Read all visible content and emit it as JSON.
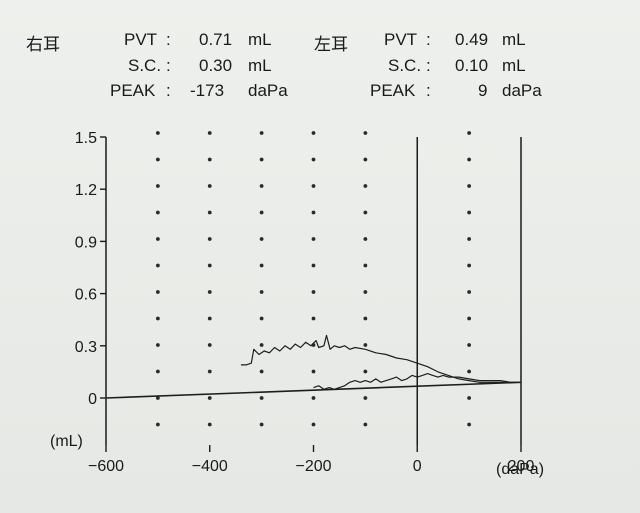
{
  "header": {
    "right_ear": {
      "label": "右耳",
      "rows": [
        {
          "name": "PVT",
          "colon": ":",
          "value": "0.71",
          "unit": "mL"
        },
        {
          "name": "S.C.",
          "colon": ":",
          "value": "0.30",
          "unit": "mL"
        },
        {
          "name": "PEAK",
          "colon": ":",
          "value": "-173",
          "unit": "daPa"
        }
      ]
    },
    "left_ear": {
      "label": "左耳",
      "rows": [
        {
          "name": "PVT",
          "colon": ":",
          "value": "0.49",
          "unit": "mL"
        },
        {
          "name": "S.C.",
          "colon": ":",
          "value": "0.10",
          "unit": "mL"
        },
        {
          "name": "PEAK",
          "colon": ":",
          "value": "9",
          "unit": "daPa"
        }
      ]
    }
  },
  "chart_data": {
    "type": "line",
    "title": "",
    "xlabel": "(daPa)",
    "ylabel": "(mL)",
    "xlim": [
      -600,
      200
    ],
    "ylim": [
      0,
      1.5
    ],
    "x_ticks": [
      -600,
      -400,
      -200,
      0,
      200
    ],
    "x_tick_labels": [
      "−600",
      "−400",
      "−200",
      "0",
      "200"
    ],
    "y_ticks": [
      0,
      0.3,
      0.6,
      0.9,
      1.2,
      1.5
    ],
    "y_tick_labels": [
      "0",
      "0.3",
      "0.6",
      "0.9",
      "1.2",
      "1.5"
    ],
    "dot_grid": true,
    "series": [
      {
        "values": [
          [
            -340,
            0.19
          ],
          [
            -330,
            0.19
          ],
          [
            -320,
            0.2
          ],
          [
            -315,
            0.28
          ],
          [
            -305,
            0.25
          ],
          [
            -295,
            0.27
          ],
          [
            -285,
            0.26
          ],
          [
            -275,
            0.29
          ],
          [
            -265,
            0.27
          ],
          [
            -255,
            0.3
          ],
          [
            -245,
            0.28
          ],
          [
            -235,
            0.31
          ],
          [
            -225,
            0.29
          ],
          [
            -215,
            0.32
          ],
          [
            -205,
            0.3
          ],
          [
            -195,
            0.33
          ],
          [
            -190,
            0.29
          ],
          [
            -180,
            0.3
          ],
          [
            -175,
            0.36
          ],
          [
            -168,
            0.28
          ],
          [
            -160,
            0.3
          ],
          [
            -150,
            0.29
          ],
          [
            -140,
            0.3
          ],
          [
            -130,
            0.28
          ],
          [
            -120,
            0.29
          ],
          [
            -100,
            0.28
          ],
          [
            -80,
            0.26
          ],
          [
            -60,
            0.25
          ],
          [
            -40,
            0.23
          ],
          [
            -20,
            0.22
          ],
          [
            0,
            0.2
          ],
          [
            20,
            0.18
          ],
          [
            40,
            0.15
          ],
          [
            60,
            0.13
          ],
          [
            80,
            0.11
          ],
          [
            100,
            0.1
          ],
          [
            120,
            0.09
          ],
          [
            140,
            0.09
          ],
          [
            160,
            0.09
          ],
          [
            180,
            0.09
          ],
          [
            195,
            0.09
          ]
        ]
      },
      {
        "values": [
          [
            -200,
            0.06
          ],
          [
            -190,
            0.07
          ],
          [
            -180,
            0.05
          ],
          [
            -170,
            0.06
          ],
          [
            -160,
            0.05
          ],
          [
            -150,
            0.06
          ],
          [
            -140,
            0.07
          ],
          [
            -130,
            0.09
          ],
          [
            -120,
            0.1
          ],
          [
            -110,
            0.09
          ],
          [
            -100,
            0.1
          ],
          [
            -90,
            0.09
          ],
          [
            -80,
            0.11
          ],
          [
            -70,
            0.09
          ],
          [
            -60,
            0.1
          ],
          [
            -50,
            0.11
          ],
          [
            -40,
            0.12
          ],
          [
            -30,
            0.1
          ],
          [
            -20,
            0.11
          ],
          [
            -10,
            0.13
          ],
          [
            0,
            0.12
          ],
          [
            10,
            0.13
          ],
          [
            20,
            0.14
          ],
          [
            30,
            0.13
          ],
          [
            40,
            0.12
          ],
          [
            50,
            0.13
          ],
          [
            60,
            0.12
          ],
          [
            80,
            0.12
          ],
          [
            100,
            0.11
          ],
          [
            120,
            0.1
          ],
          [
            140,
            0.1
          ],
          [
            160,
            0.1
          ],
          [
            180,
            0.09
          ],
          [
            195,
            0.09
          ]
        ]
      },
      {
        "values": [
          [
            -600,
            0.0
          ],
          [
            200,
            0.09
          ]
        ]
      }
    ]
  }
}
